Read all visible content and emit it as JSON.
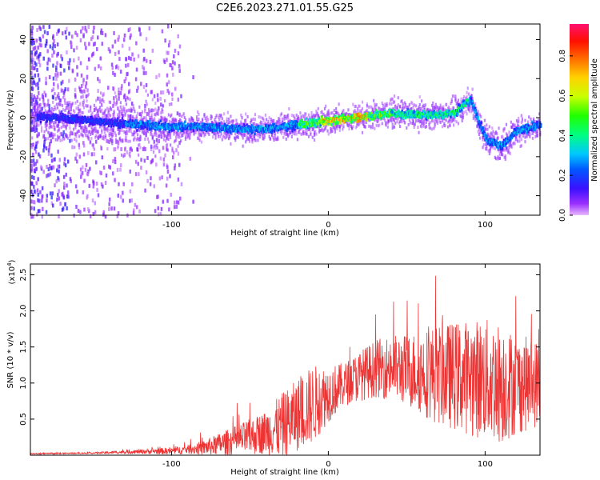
{
  "title": "C2E6.2023.271.01.55.G25",
  "chart_data": [
    {
      "type": "heatmap",
      "xlabel": "Height of straight line (km)",
      "ylabel": "Frequency (Hz)",
      "xlim": [
        -190,
        135
      ],
      "ylim": [
        -50,
        48
      ],
      "x_ticks": [
        -100,
        0,
        100
      ],
      "x_tick_labels": [
        "-100",
        "0",
        "100"
      ],
      "y_ticks": [
        -40,
        -20,
        0,
        20,
        40
      ],
      "y_tick_labels": [
        "-40",
        "-20",
        "0",
        "20",
        "40"
      ],
      "ridge": {
        "description_units": "frequency (Hz) of the dominant ridge vs height (km)",
        "x": [
          -180,
          -160,
          -140,
          -120,
          -100,
          -80,
          -60,
          -40,
          -20,
          0,
          20,
          40,
          60,
          80,
          90,
          100,
          110,
          120,
          135
        ],
        "y": [
          1,
          0,
          -2,
          -3,
          -4,
          -4,
          -5,
          -5,
          -3,
          -1,
          1,
          3,
          2,
          3,
          10,
          -10,
          -14,
          -6,
          -3
        ]
      },
      "colorbar": {
        "label": "Normalized spectral amplitude",
        "range": [
          0.0,
          0.96
        ],
        "ticks": [
          0.0,
          0.2,
          0.4,
          0.6,
          0.8
        ],
        "tick_labels": [
          "0.0",
          "0.2",
          "0.4",
          "0.6",
          "0.8"
        ]
      }
    },
    {
      "type": "line",
      "xlabel": "Height of straight line (km)",
      "ylabel": "SNR (10 * v/v)",
      "y_multiplier": "(x10",
      "y_multiplier_exp": "4",
      "y_multiplier_close": ")",
      "xlim": [
        -190,
        135
      ],
      "ylim": [
        0,
        2.65
      ],
      "x_ticks": [
        -100,
        0,
        100
      ],
      "x_tick_labels": [
        "-100",
        "0",
        "100"
      ],
      "y_ticks": [
        0.5,
        1.0,
        1.5,
        2.0,
        2.5
      ],
      "y_tick_labels": [
        "0.5",
        "1.0",
        "1.5",
        "2.0",
        "2.5"
      ],
      "series": [
        {
          "color": "#ee3333",
          "envelope_x": [
            -190,
            -150,
            -120,
            -100,
            -90,
            -80,
            -70,
            -60,
            -50,
            -40,
            -30,
            -20,
            -10,
            0,
            10,
            20,
            30,
            40,
            50,
            60,
            70,
            80,
            90,
            100,
            110,
            120,
            135
          ],
          "envelope_mean": [
            0.02,
            0.03,
            0.05,
            0.06,
            0.08,
            0.1,
            0.15,
            0.2,
            0.25,
            0.32,
            0.4,
            0.55,
            0.7,
            0.85,
            0.98,
            1.1,
            1.2,
            1.22,
            1.18,
            1.15,
            1.12,
            1.1,
            1.08,
            1.05,
            1.0,
            0.98,
            1.0
          ],
          "envelope_spread": [
            0.01,
            0.01,
            0.03,
            0.05,
            0.06,
            0.1,
            0.15,
            0.2,
            0.25,
            0.3,
            0.45,
            0.5,
            0.55,
            0.4,
            0.3,
            0.35,
            0.4,
            0.45,
            0.5,
            0.6,
            0.7,
            0.75,
            0.8,
            0.85,
            0.85,
            0.7,
            0.6
          ]
        }
      ]
    }
  ]
}
